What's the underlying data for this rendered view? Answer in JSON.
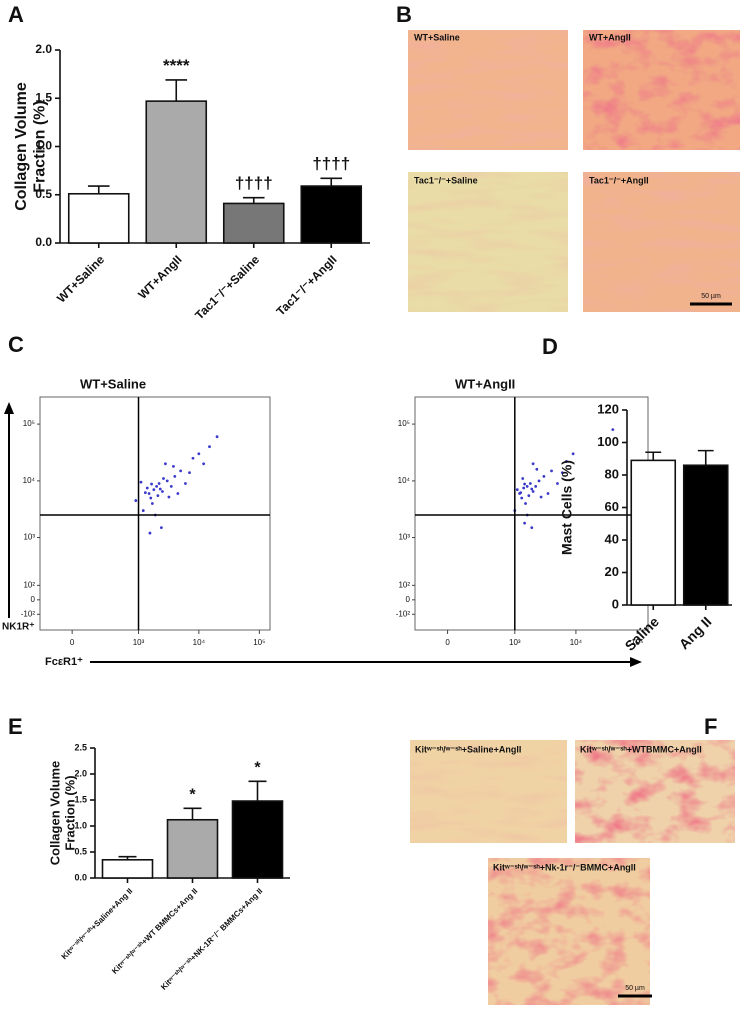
{
  "panel_labels": [
    "A",
    "B",
    "C",
    "D",
    "E",
    "F"
  ],
  "chart_data": [
    {
      "type": "bar",
      "ylabel": [
        "Collagen Volume",
        "Fraction (%)"
      ],
      "categories": [
        "WT+Saline",
        "WT+AngII",
        "Tac1⁻/⁻+Saline",
        "Tac1⁻/⁻+AngII"
      ],
      "values": [
        0.51,
        1.47,
        0.41,
        0.59
      ],
      "errors": [
        0.08,
        0.22,
        0.06,
        0.08
      ],
      "colors": [
        "#ffffff",
        "#aaaaaa",
        "#777777",
        "#000000"
      ],
      "annotations": [
        null,
        "****",
        "††††",
        "††††"
      ],
      "ylim": [
        0,
        2.0
      ],
      "yticks": [
        {
          "value": 0,
          "label": "0.0"
        },
        0.5,
        {
          "value": 1,
          "label": "1.0"
        },
        1.5,
        {
          "value": 2,
          "label": "2.0"
        }
      ]
    },
    {
      "type": "scatter",
      "title": "WT+Saline",
      "xlabel": "FcεR1⁺",
      "ylabel": "NK1R⁺",
      "xscale": "asinh",
      "yscale": "asinh",
      "color": "#3a3acc",
      "xlim": [
        -250,
        150000
      ],
      "ylim": [
        -250,
        300000
      ],
      "xticks": [
        0,
        {
          "value": 1000,
          "label": "10³"
        },
        {
          "value": 10000,
          "label": "10⁴"
        },
        {
          "value": 100000,
          "label": "10⁵"
        }
      ],
      "yticks": [
        {
          "value": -100,
          "label": "-10²"
        },
        0,
        {
          "value": 100,
          "label": "10²"
        },
        {
          "value": 1000,
          "label": "10³"
        },
        {
          "value": 10000,
          "label": "10⁴"
        },
        {
          "value": 100000,
          "label": "10⁵"
        }
      ],
      "gate": {
        "x": 1000,
        "y": 2500
      },
      "x": [
        1500,
        1800,
        2000,
        1600,
        2200,
        2500,
        1400,
        3000,
        1700,
        2100,
        4000,
        5000,
        3500,
        2800,
        6000,
        8000,
        1200,
        1900,
        2400,
        10000,
        15000,
        1300,
        1650,
        2300,
        3200,
        4500,
        7000,
        20000,
        1100,
        2600,
        3800,
        900,
        1550,
        12000
      ],
      "values": [
        6000,
        7000,
        8000,
        5000,
        9000,
        6500,
        7500,
        10000,
        4000,
        5500,
        12000,
        15000,
        8000,
        20000,
        9000,
        25000,
        3000,
        2500,
        1500,
        30000,
        40000,
        6200,
        8800,
        7200,
        5200,
        6000,
        14000,
        60000,
        9500,
        11000,
        18000,
        4500,
        1200,
        20000
      ]
    },
    {
      "type": "scatter",
      "title": "WT+AngII",
      "xscale": "asinh",
      "yscale": "asinh",
      "color": "#3a3acc",
      "xlim": [
        -250,
        150000
      ],
      "ylim": [
        -250,
        300000
      ],
      "xticks": [
        0,
        {
          "value": 1000,
          "label": "10³"
        },
        {
          "value": 10000,
          "label": "10⁴"
        },
        {
          "value": 100000,
          "label": "10⁵"
        }
      ],
      "yticks": [
        {
          "value": -100,
          "label": "-10²"
        },
        0,
        {
          "value": 100,
          "label": "10²"
        },
        {
          "value": 1000,
          "label": "10³"
        },
        {
          "value": 10000,
          "label": "10⁴"
        },
        {
          "value": 100000,
          "label": "10⁵"
        }
      ],
      "gate": {
        "x": 1000,
        "y": 2500
      },
      "x": [
        1200,
        1400,
        1600,
        1300,
        1800,
        2000,
        1100,
        2500,
        1500,
        1700,
        3000,
        4000,
        2200,
        2000,
        5000,
        7000,
        1000,
        1600,
        1900,
        9000,
        40000,
        1250,
        1450,
        1900,
        2700,
        3500,
        6000,
        1350,
        2300,
        1450
      ],
      "values": [
        6000,
        7500,
        8000,
        5000,
        9000,
        6500,
        7000,
        10000,
        4000,
        5500,
        12000,
        15000,
        8000,
        20000,
        9000,
        22000,
        3000,
        2500,
        1500,
        30000,
        80000,
        6200,
        8800,
        7200,
        5200,
        6000,
        14000,
        11000,
        16000,
        1800
      ]
    },
    {
      "type": "bar",
      "ylabel": "Mast Cells (%)",
      "categories": [
        "Saline",
        "Ang II"
      ],
      "values": [
        89,
        86
      ],
      "errors": [
        5,
        9
      ],
      "colors": [
        "#ffffff",
        "#000000"
      ],
      "ylim": [
        0,
        120
      ],
      "yticks": [
        0,
        20,
        40,
        60,
        80,
        100,
        120
      ]
    },
    {
      "type": "bar",
      "ylabel": [
        "Collagen Volume",
        "Fraction (%)"
      ],
      "categories": [
        "Kitʷ⁻ˢʰ/ʷ⁻ˢʰ+Saline+Ang II",
        "Kitʷ⁻ˢʰ/ʷ⁻ˢʰ+WT BMMCs+Ang II",
        "Kitʷ⁻ˢʰ/ʷ⁻ˢʰ+NK-1R⁻/⁻ BMMCs+Ang II"
      ],
      "values": [
        0.35,
        1.12,
        1.48
      ],
      "errors": [
        0.06,
        0.22,
        0.38
      ],
      "colors": [
        "#ffffff",
        "#aaaaaa",
        "#000000"
      ],
      "annotations": [
        null,
        "*",
        "*"
      ],
      "ylim": [
        0,
        2.5
      ],
      "yticks": [
        {
          "value": 0,
          "label": "0.0"
        },
        0.5,
        {
          "value": 1,
          "label": "1.0"
        },
        1.5,
        {
          "value": 2,
          "label": "2.0"
        },
        2.5
      ]
    }
  ],
  "histology_b": {
    "labels": [
      "WT+Saline",
      "WT+AngII",
      "Tac1⁻/⁻+Saline",
      "Tac1⁻/⁻+AngII"
    ],
    "scale_bar": "50 µm"
  },
  "histology_f": {
    "labels": [
      "Kitʷ⁻ˢʰ/ʷ⁻ˢʰ+Saline+AngII",
      "Kitʷ⁻ˢʰ/ʷ⁻ˢʰ+WTBMMC+AngII",
      "Kitʷ⁻ˢʰ/ʷ⁻ˢʰ+Nk-1r⁻/⁻BMMC+AngII"
    ],
    "scale_bar": "50 µm"
  }
}
